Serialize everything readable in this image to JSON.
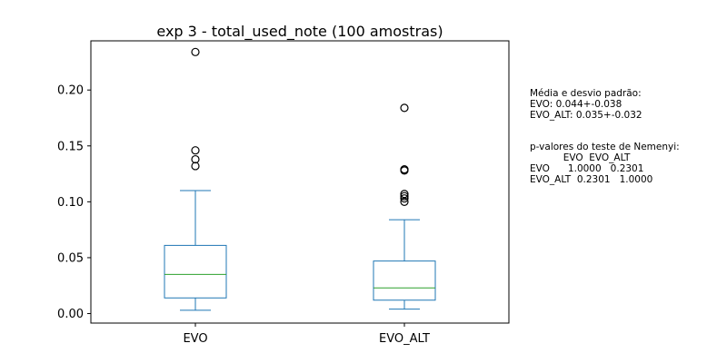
{
  "chart_data": {
    "type": "box",
    "title": "exp 3 - total_used_note (100 amostras)",
    "xlabel": "",
    "ylabel": "",
    "ylim": [
      -0.0085,
      0.244
    ],
    "yticks": [
      0.0,
      0.05,
      0.1,
      0.15,
      0.2
    ],
    "ytick_labels": [
      "0.00",
      "0.05",
      "0.10",
      "0.15",
      "0.20"
    ],
    "grid": false,
    "categories": [
      "EVO",
      "EVO_ALT"
    ],
    "boxes": [
      {
        "name": "EVO",
        "whisker_low": 0.003,
        "q1": 0.014,
        "median": 0.035,
        "q3": 0.061,
        "whisker_high": 0.11,
        "outliers": [
          0.132,
          0.138,
          0.146,
          0.234
        ]
      },
      {
        "name": "EVO_ALT",
        "whisker_low": 0.004,
        "q1": 0.012,
        "median": 0.023,
        "q3": 0.047,
        "whisker_high": 0.084,
        "outliers": [
          0.1,
          0.103,
          0.105,
          0.107,
          0.128,
          0.129,
          0.184
        ]
      }
    ],
    "colors": {
      "box": "#1f77b4",
      "median": "#2ca02c",
      "outlier": "#000000"
    },
    "annotations": {
      "stats": "Média e desvio padrão:\nEVO: 0.044+-0.038\nEVO_ALT: 0.035+-0.032",
      "pvalues": "p-valores do teste de Nemenyi:\n           EVO  EVO_ALT\nEVO      1.0000   0.2301\nEVO_ALT  0.2301   1.0000"
    }
  }
}
